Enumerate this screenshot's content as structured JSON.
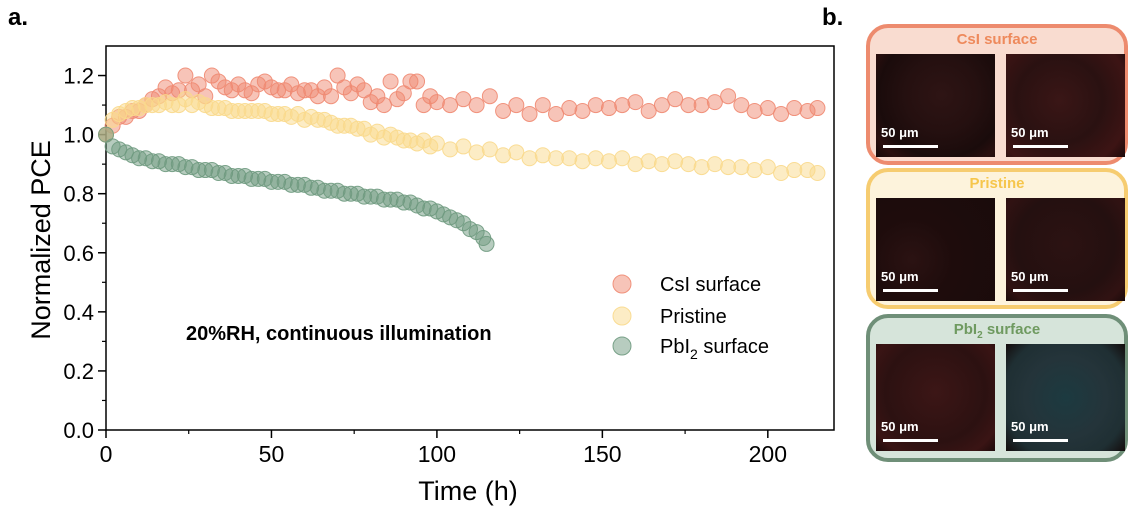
{
  "panel_a_label": "a.",
  "panel_b_label": "b.",
  "chart_data": {
    "type": "scatter",
    "xlabel": "Time (h)",
    "ylabel": "Normalized PCE",
    "xlim": [
      0,
      220
    ],
    "ylim": [
      0.0,
      1.3
    ],
    "xticks": [
      "0",
      "50",
      "100",
      "150",
      "200"
    ],
    "yticks": [
      "0.0",
      "0.2",
      "0.4",
      "0.6",
      "0.8",
      "1.0",
      "1.2"
    ],
    "annotation": "20%RH, continuous illumination",
    "legend_position": "bottom-right",
    "series": [
      {
        "name": "CsI surface",
        "color": "#f08a72",
        "x": [
          0,
          2,
          4,
          6,
          8,
          10,
          12,
          14,
          16,
          18,
          20,
          22,
          24,
          26,
          28,
          30,
          32,
          34,
          36,
          38,
          40,
          42,
          44,
          46,
          48,
          50,
          52,
          54,
          56,
          58,
          60,
          62,
          64,
          66,
          68,
          70,
          72,
          74,
          76,
          78,
          80,
          82,
          84,
          86,
          88,
          90,
          92,
          94,
          96,
          98,
          100,
          104,
          108,
          112,
          116,
          120,
          124,
          128,
          132,
          136,
          140,
          144,
          148,
          152,
          156,
          160,
          164,
          168,
          172,
          176,
          180,
          184,
          188,
          192,
          196,
          200,
          204,
          208,
          212,
          215
        ],
        "y": [
          1.0,
          1.03,
          1.06,
          1.06,
          1.08,
          1.08,
          1.1,
          1.12,
          1.13,
          1.16,
          1.14,
          1.15,
          1.2,
          1.15,
          1.17,
          1.13,
          1.2,
          1.18,
          1.16,
          1.15,
          1.17,
          1.15,
          1.14,
          1.17,
          1.18,
          1.16,
          1.15,
          1.15,
          1.17,
          1.14,
          1.15,
          1.15,
          1.13,
          1.16,
          1.13,
          1.2,
          1.16,
          1.14,
          1.17,
          1.15,
          1.11,
          1.13,
          1.1,
          1.18,
          1.12,
          1.14,
          1.18,
          1.18,
          1.1,
          1.13,
          1.11,
          1.1,
          1.12,
          1.1,
          1.13,
          1.08,
          1.1,
          1.07,
          1.1,
          1.07,
          1.09,
          1.08,
          1.1,
          1.09,
          1.1,
          1.11,
          1.08,
          1.1,
          1.12,
          1.1,
          1.1,
          1.11,
          1.13,
          1.1,
          1.08,
          1.09,
          1.07,
          1.09,
          1.08,
          1.09
        ]
      },
      {
        "name": "Pristine",
        "color": "#fad98c",
        "x": [
          0,
          2,
          4,
          6,
          8,
          10,
          12,
          14,
          16,
          18,
          20,
          22,
          24,
          26,
          28,
          30,
          32,
          34,
          36,
          38,
          40,
          42,
          44,
          46,
          48,
          50,
          52,
          54,
          56,
          58,
          60,
          62,
          64,
          66,
          68,
          70,
          72,
          74,
          76,
          78,
          80,
          82,
          84,
          86,
          88,
          90,
          92,
          94,
          96,
          98,
          100,
          104,
          108,
          112,
          116,
          120,
          124,
          128,
          132,
          136,
          140,
          144,
          148,
          152,
          156,
          160,
          164,
          168,
          172,
          176,
          180,
          184,
          188,
          192,
          196,
          200,
          204,
          208,
          212,
          215
        ],
        "y": [
          1.0,
          1.05,
          1.07,
          1.08,
          1.09,
          1.09,
          1.1,
          1.1,
          1.1,
          1.11,
          1.1,
          1.1,
          1.12,
          1.1,
          1.11,
          1.1,
          1.09,
          1.09,
          1.09,
          1.08,
          1.08,
          1.08,
          1.08,
          1.08,
          1.08,
          1.07,
          1.07,
          1.07,
          1.06,
          1.07,
          1.05,
          1.06,
          1.05,
          1.05,
          1.04,
          1.03,
          1.03,
          1.03,
          1.02,
          1.02,
          1.0,
          1.01,
          0.99,
          1.0,
          0.99,
          0.98,
          0.98,
          0.97,
          0.98,
          0.96,
          0.97,
          0.95,
          0.96,
          0.94,
          0.95,
          0.93,
          0.94,
          0.92,
          0.93,
          0.92,
          0.92,
          0.91,
          0.92,
          0.91,
          0.92,
          0.9,
          0.91,
          0.9,
          0.91,
          0.9,
          0.89,
          0.9,
          0.89,
          0.89,
          0.88,
          0.89,
          0.87,
          0.88,
          0.88,
          0.87
        ]
      },
      {
        "name": "PbI2 surface",
        "name_base": "PbI",
        "name_sub": "2",
        "name_tail": " surface",
        "color": "#6f9a80",
        "x": [
          0,
          2,
          4,
          6,
          8,
          10,
          12,
          14,
          16,
          18,
          20,
          22,
          24,
          26,
          28,
          30,
          32,
          34,
          36,
          38,
          40,
          42,
          44,
          46,
          48,
          50,
          52,
          54,
          56,
          58,
          60,
          62,
          64,
          66,
          68,
          70,
          72,
          74,
          76,
          78,
          80,
          82,
          84,
          86,
          88,
          90,
          92,
          94,
          96,
          98,
          100,
          102,
          104,
          106,
          108,
          110,
          112,
          114,
          115
        ],
        "y": [
          1.0,
          0.96,
          0.95,
          0.94,
          0.93,
          0.92,
          0.92,
          0.91,
          0.91,
          0.9,
          0.9,
          0.9,
          0.89,
          0.89,
          0.88,
          0.88,
          0.88,
          0.87,
          0.87,
          0.86,
          0.86,
          0.86,
          0.85,
          0.85,
          0.85,
          0.84,
          0.84,
          0.84,
          0.83,
          0.83,
          0.83,
          0.82,
          0.82,
          0.81,
          0.81,
          0.81,
          0.8,
          0.8,
          0.8,
          0.79,
          0.79,
          0.79,
          0.78,
          0.78,
          0.78,
          0.77,
          0.77,
          0.76,
          0.75,
          0.75,
          0.74,
          0.73,
          0.72,
          0.71,
          0.7,
          0.68,
          0.67,
          0.65,
          0.63
        ]
      }
    ]
  },
  "panel_b": {
    "boxes": [
      {
        "title": "CsI surface",
        "title_base": "CsI surface",
        "title_sub": "",
        "title_tail": "",
        "border": "#ed8b6e",
        "fill": "#f9dcd0",
        "title_color": "#ee8a5c",
        "scale_label": "50 μm"
      },
      {
        "title": "Pristine",
        "title_base": "Pristine",
        "title_sub": "",
        "title_tail": "",
        "border": "#f6cc70",
        "fill": "#fdf3dc",
        "title_color": "#f6c64c",
        "scale_label": "50 μm"
      },
      {
        "title": "PbI2 surface",
        "title_base": "PbI",
        "title_sub": "2",
        "title_tail": " surface",
        "border": "#6f8f78",
        "fill": "#d6e4da",
        "title_color": "#6f9a60",
        "scale_label": "50 μm"
      }
    ]
  }
}
